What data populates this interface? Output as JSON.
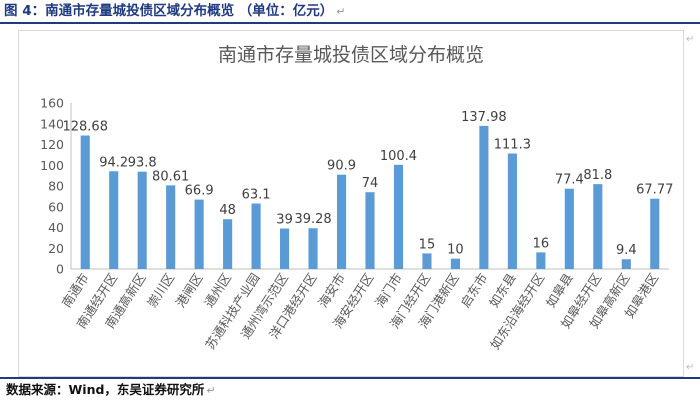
{
  "figure_title": "图 4：南通市存量城投债区域分布概览 （单位：亿元）",
  "source_note": "数据来源：Wind，东吴证券研究所",
  "colors": {
    "bar": "#5b9bd5",
    "axis": "#bfbfbf",
    "grid": "#d9d9d9",
    "text": "#595959",
    "title_blue": "#1f3a80"
  },
  "chart_data": {
    "type": "bar",
    "title": "南通市存量城投债区域分布概览",
    "xlabel": "",
    "ylabel": "",
    "ylim": [
      0,
      160
    ],
    "yticks": [
      0,
      20,
      40,
      60,
      80,
      100,
      120,
      140,
      160
    ],
    "grid": false,
    "legend": "none",
    "categories": [
      "南通市",
      "南通经开区",
      "南通高新区",
      "崇川区",
      "港闸区",
      "通州区",
      "苏通科技产业园",
      "通州湾示范区",
      "洋口港经开区",
      "海安市",
      "海安经开区",
      "海门市",
      "海门经开区",
      "海门港新区",
      "启东市",
      "如东县",
      "如东沿海经开区",
      "如皋县",
      "如皋经开区",
      "如皋高新区",
      "如皋港区"
    ],
    "values": [
      128.68,
      94.2,
      93.8,
      80.61,
      66.9,
      48,
      63.1,
      39,
      39.28,
      90.9,
      74,
      100.4,
      15,
      10,
      137.98,
      111.3,
      16,
      77.4,
      81.8,
      9.4,
      67.77
    ],
    "data_labels": [
      "128.68",
      "94.2",
      "93.8",
      "80.61",
      "66.9",
      "48",
      "63.1",
      "39",
      "39.28",
      "90.9",
      "74",
      "100.4",
      "15",
      "10",
      "137.98",
      "111.3",
      "16",
      "77.4",
      "81.8",
      "9.4",
      "67.77"
    ]
  }
}
